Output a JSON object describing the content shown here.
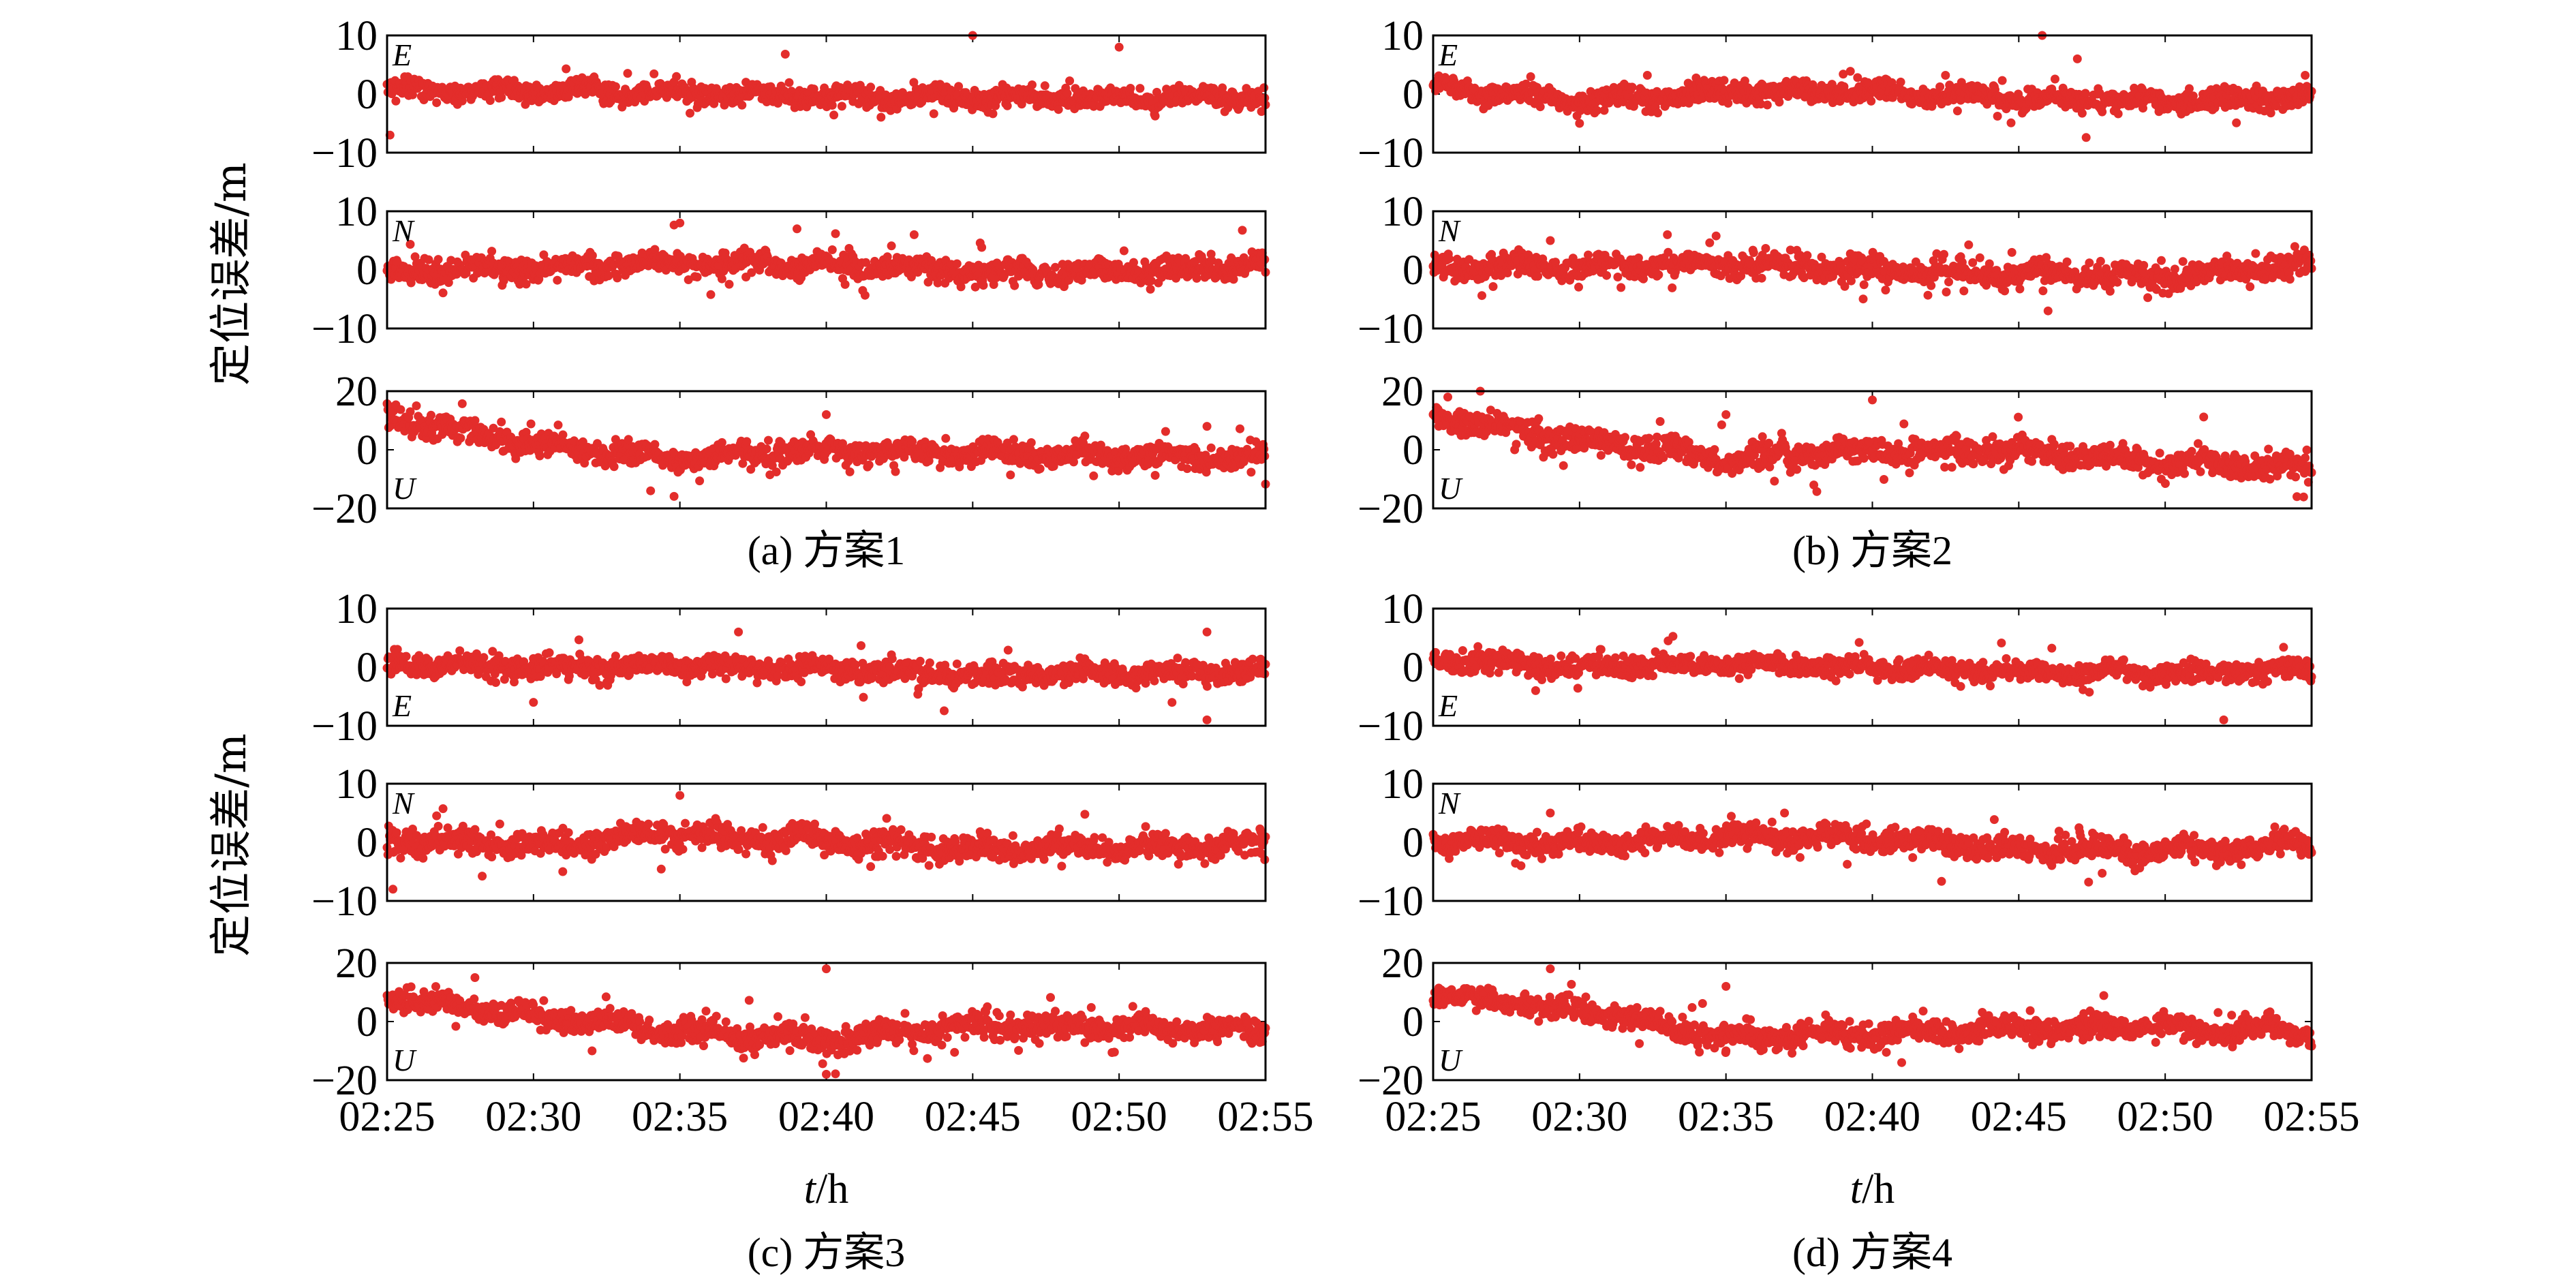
{
  "figure": {
    "y_label": "定位误差/m",
    "x_label": {
      "var": "t",
      "unit": "/h"
    },
    "x_ticks": [
      "02:25",
      "02:30",
      "02:35",
      "02:40",
      "02:45",
      "02:50",
      "02:55"
    ],
    "point_color": "#e32d2b"
  },
  "chart_data": [
    {
      "type": "scatter",
      "caption": "(a) 方案1",
      "panels": [
        {
          "component": "E",
          "ylim": [
            -10,
            10
          ],
          "yticks": [
            10,
            0,
            -10
          ],
          "label_corner": "top",
          "center": [
            0.8,
            0.5,
            0.2,
            -0.3,
            -0.6,
            -0.8,
            -0.5
          ],
          "spread": 1.6,
          "outliers": [
            [
              0.1,
              -7
            ],
            [
              13.6,
              6.8
            ],
            [
              20,
              10
            ],
            [
              25,
              8
            ]
          ]
        },
        {
          "component": "N",
          "ylim": [
            -10,
            10
          ],
          "yticks": [
            10,
            0,
            -10
          ],
          "label_corner": "top",
          "center": [
            -0.5,
            0.3,
            1.2,
            0.8,
            -0.4,
            -0.5,
            1.0
          ],
          "spread": 1.8,
          "outliers": [
            [
              10,
              8
            ],
            [
              18,
              6
            ],
            [
              14,
              7
            ]
          ]
        },
        {
          "component": "U",
          "ylim": [
            -20,
            20
          ],
          "yticks": [
            20,
            0,
            -20
          ],
          "label_corner": "bottom",
          "center": [
            11,
            2,
            -3,
            0,
            -1,
            -2,
            -3
          ],
          "spread": 3.5,
          "outliers": [
            [
              1,
              15
            ],
            [
              15,
              12
            ],
            [
              28,
              8
            ],
            [
              9,
              -14
            ]
          ]
        }
      ]
    },
    {
      "type": "scatter",
      "caption": "(b) 方案2",
      "panels": [
        {
          "component": "E",
          "ylim": [
            -10,
            10
          ],
          "yticks": [
            10,
            0,
            -10
          ],
          "label_corner": "top",
          "center": [
            1.5,
            -1.2,
            0.4,
            0.3,
            -0.8,
            -1.2,
            -0.3
          ],
          "spread": 1.6,
          "outliers": [
            [
              20.8,
              10
            ],
            [
              22,
              6
            ],
            [
              5,
              -5
            ]
          ]
        },
        {
          "component": "N",
          "ylim": [
            -10,
            10
          ],
          "yticks": [
            10,
            0,
            -10
          ],
          "label_corner": "top",
          "center": [
            0.8,
            0.4,
            1.0,
            0.2,
            -0.8,
            -1.0,
            0.9
          ],
          "spread": 1.8,
          "outliers": [
            [
              4,
              5
            ],
            [
              8,
              6
            ],
            [
              21,
              -7
            ]
          ]
        },
        {
          "component": "U",
          "ylim": [
            -20,
            20
          ],
          "yticks": [
            20,
            0,
            -20
          ],
          "label_corner": "bottom",
          "center": [
            12,
            3,
            -3,
            0,
            -1,
            -4,
            -6
          ],
          "spread": 3.8,
          "outliers": [
            [
              0.5,
              18
            ],
            [
              15,
              17
            ],
            [
              10,
              12
            ],
            [
              13,
              -12
            ],
            [
              29.5,
              -16
            ]
          ]
        }
      ]
    },
    {
      "type": "scatter",
      "caption": "(c) 方案3",
      "panels": [
        {
          "component": "E",
          "ylim": [
            -10,
            10
          ],
          "yticks": [
            10,
            0,
            -10
          ],
          "label_corner": "bottom",
          "center": [
            0.5,
            0.0,
            0.3,
            -0.5,
            -1.2,
            -1.0,
            -0.6
          ],
          "spread": 1.6,
          "outliers": [
            [
              12,
              6
            ],
            [
              28,
              6
            ],
            [
              28,
              -9
            ],
            [
              5,
              -6
            ]
          ]
        },
        {
          "component": "N",
          "ylim": [
            -10,
            10
          ],
          "yticks": [
            10,
            0,
            -10
          ],
          "label_corner": "top",
          "center": [
            0.2,
            -0.5,
            1.5,
            0.3,
            -1.2,
            -0.8,
            -0.3
          ],
          "spread": 1.9,
          "outliers": [
            [
              0.2,
              -8
            ],
            [
              10,
              8
            ],
            [
              6,
              -5
            ]
          ]
        },
        {
          "component": "U",
          "ylim": [
            -20,
            20
          ],
          "yticks": [
            20,
            0,
            -20
          ],
          "label_corner": "bottom",
          "center": [
            8,
            2,
            -3,
            -6,
            -1,
            -2,
            -3
          ],
          "spread": 3.6,
          "outliers": [
            [
              3,
              15
            ],
            [
              15,
              18
            ],
            [
              15,
              -18
            ],
            [
              7,
              -10
            ]
          ]
        }
      ]
    },
    {
      "type": "scatter",
      "caption": "(d) 方案4",
      "panels": [
        {
          "component": "E",
          "ylim": [
            -10,
            10
          ],
          "yticks": [
            10,
            0,
            -10
          ],
          "label_corner": "bottom",
          "center": [
            1.5,
            -0.2,
            0.6,
            0.0,
            -0.8,
            -1.0,
            -0.5
          ],
          "spread": 1.5,
          "outliers": [
            [
              27,
              -9
            ],
            [
              3.5,
              -4
            ]
          ]
        },
        {
          "component": "N",
          "ylim": [
            -10,
            10
          ],
          "yticks": [
            10,
            0,
            -10
          ],
          "label_corner": "top",
          "center": [
            0.4,
            -0.3,
            1.0,
            0.8,
            -1.2,
            -1.5,
            -0.2
          ],
          "spread": 1.7,
          "outliers": [
            [
              4,
              5
            ],
            [
              3,
              -4
            ],
            [
              12,
              5
            ]
          ]
        },
        {
          "component": "U",
          "ylim": [
            -20,
            20
          ],
          "yticks": [
            20,
            0,
            -20
          ],
          "label_corner": "bottom",
          "center": [
            9,
            4,
            -5,
            -4,
            -2,
            -2,
            -4
          ],
          "spread": 3.4,
          "outliers": [
            [
              4,
              18
            ],
            [
              10,
              12
            ],
            [
              10,
              -10
            ],
            [
              16,
              -14
            ]
          ]
        }
      ]
    }
  ]
}
